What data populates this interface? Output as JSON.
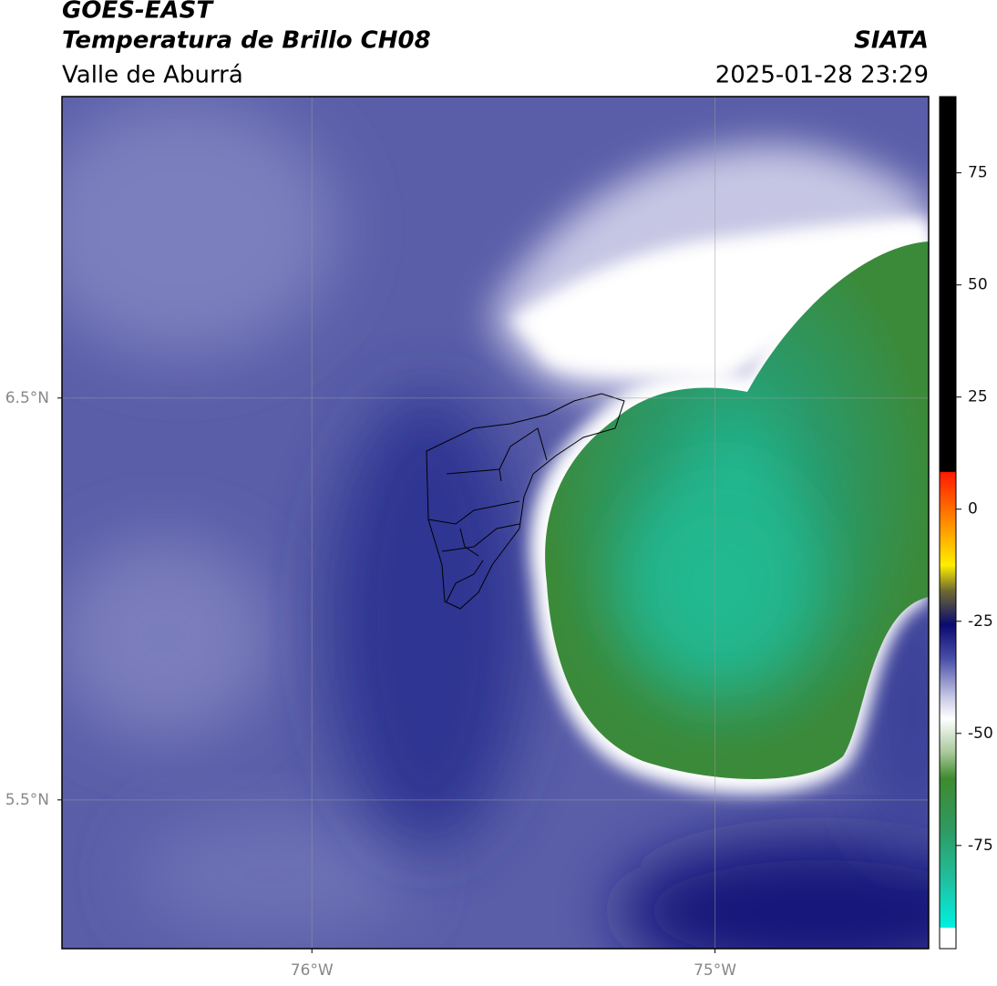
{
  "header": {
    "source": "GOES-EAST",
    "product": "Temperatura de Brillo CH08",
    "region": "Valle de Aburrá",
    "agency": "SIATA",
    "datetime": "2025-01-28 23:29"
  },
  "map": {
    "xlim": [
      -76.62,
      -74.47
    ],
    "ylim": [
      5.13,
      7.25
    ],
    "xticks": [
      {
        "value": -76,
        "label": "76°W"
      },
      {
        "value": -75,
        "label": "75°W"
      }
    ],
    "yticks": [
      {
        "value": 6.5,
        "label": "6.5°N"
      },
      {
        "value": 5.5,
        "label": "5.5°N"
      }
    ],
    "grid": true
  },
  "colorbar": {
    "lim": [
      -98,
      92
    ],
    "ticks": [
      75,
      50,
      25,
      0,
      -25,
      -50,
      -75
    ]
  }
}
